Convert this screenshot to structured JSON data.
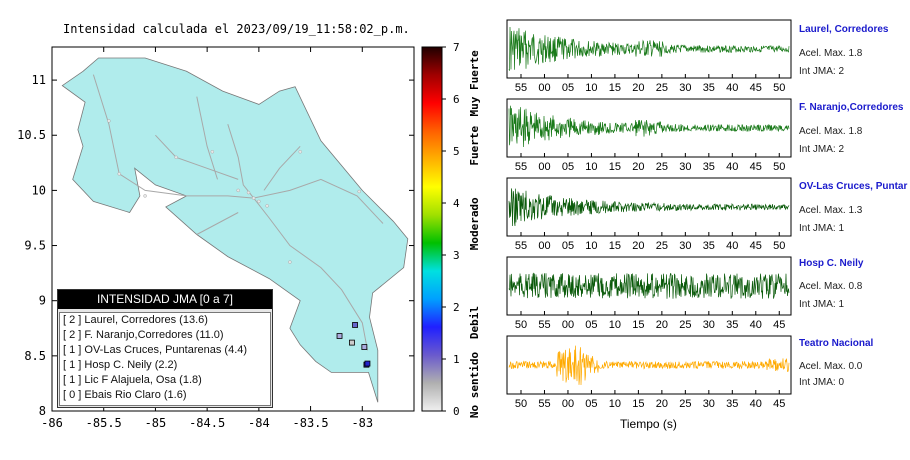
{
  "map": {
    "title": "Intensidad calculada el 2023/09/19_11:58:02_p.m.",
    "x_ticks": [
      "-86",
      "-85.5",
      "-85",
      "-84.5",
      "-84",
      "-83.5",
      "-83"
    ],
    "y_ticks": [
      "11",
      "10.5",
      "10",
      "9.5",
      "9",
      "8.5",
      "8"
    ],
    "xlim": [
      -86,
      -82.5
    ],
    "ylim": [
      8,
      11.3
    ],
    "land_color": "#b0ecec",
    "legend": {
      "header": "INTENSIDAD JMA [0 a 7]",
      "items": [
        "[ 2 ]  Laurel, Corredores (13.6)",
        "[ 2 ]  F. Naranjo,Corredores (11.0)",
        "[ 1 ]  OV-Las Cruces, Puntarenas (4.4)",
        "[ 1 ]  Hosp C. Neily (2.2)",
        "[ 1 ]  Lic F Alajuela, Osa (1.8)",
        "[ 0 ]  Ebais Rio Claro (1.6)"
      ]
    },
    "stations": [
      {
        "lon": -82.96,
        "lat": 8.42,
        "color": "#2222cc"
      },
      {
        "lon": -82.95,
        "lat": 8.43,
        "color": "#2222cc"
      },
      {
        "lon": -83.07,
        "lat": 8.78,
        "color": "#6666cc"
      },
      {
        "lon": -82.98,
        "lat": 8.58,
        "color": "#aaaadd"
      },
      {
        "lon": -83.22,
        "lat": 8.68,
        "color": "#aaaadd"
      },
      {
        "lon": -83.1,
        "lat": 8.62,
        "color": "#cccccc"
      }
    ]
  },
  "colorbar": {
    "ticks": [
      "0",
      "1",
      "2",
      "3",
      "4",
      "5",
      "6",
      "7"
    ],
    "levels": [
      "No sentido",
      "Debil",
      "Moderado",
      "Fuerte",
      "Muy Fuerte"
    ],
    "colors": [
      "#f0f0f0",
      "#b0b0b0",
      "#6a5acd",
      "#2020ff",
      "#00a0ff",
      "#00e0e0",
      "#00c000",
      "#a0e000",
      "#ffff00",
      "#ffb000",
      "#ff6000",
      "#ff0000",
      "#a00000",
      "#200000"
    ]
  },
  "chart_data": {
    "type": "line",
    "xlabel": "Tiempo (s)",
    "traces": [
      {
        "name": "Laurel, Corredores",
        "acel": "Acel. Max. 1.8",
        "int": "Int JMA: 2",
        "color": "#1a7a1a",
        "x_ticks": [
          "55",
          "00",
          "05",
          "10",
          "15",
          "20",
          "25",
          "30",
          "35",
          "40",
          "45",
          "50"
        ],
        "amp": 1.0,
        "decay": 0.55
      },
      {
        "name": "F. Naranjo,Corredores",
        "acel": "Acel. Max. 1.8",
        "int": "Int JMA: 2",
        "color": "#1a7a1a",
        "x_ticks": [
          "55",
          "00",
          "05",
          "10",
          "15",
          "20",
          "25",
          "30",
          "35",
          "40",
          "45",
          "50"
        ],
        "amp": 1.0,
        "decay": 0.6
      },
      {
        "name": "OV-Las Cruces, Puntar",
        "acel": "Acel. Max. 1.3",
        "int": "Int JMA: 1",
        "color": "#0a5a0a",
        "x_ticks": [
          "55",
          "00",
          "05",
          "10",
          "15",
          "20",
          "25",
          "30",
          "35",
          "40",
          "45",
          "50"
        ],
        "amp": 0.85,
        "decay": 0.5
      },
      {
        "name": "Hosp C. Neily",
        "acel": "Acel. Max. 0.8",
        "int": "Int JMA: 1",
        "color": "#0a5a0a",
        "x_ticks": [
          "50",
          "55",
          "00",
          "05",
          "10",
          "15",
          "20",
          "25",
          "30",
          "35",
          "40",
          "45"
        ],
        "amp": 0.7,
        "decay": 0.05
      },
      {
        "name": "Teatro Nacional",
        "acel": "Acel. Max. 0.0",
        "int": "Int JMA: 0",
        "color": "#ffaa00",
        "x_ticks": [
          "50",
          "55",
          "00",
          "05",
          "10",
          "15",
          "20",
          "25",
          "30",
          "35",
          "40",
          "45"
        ],
        "amp": 0.8,
        "decay": 0.0
      }
    ]
  }
}
